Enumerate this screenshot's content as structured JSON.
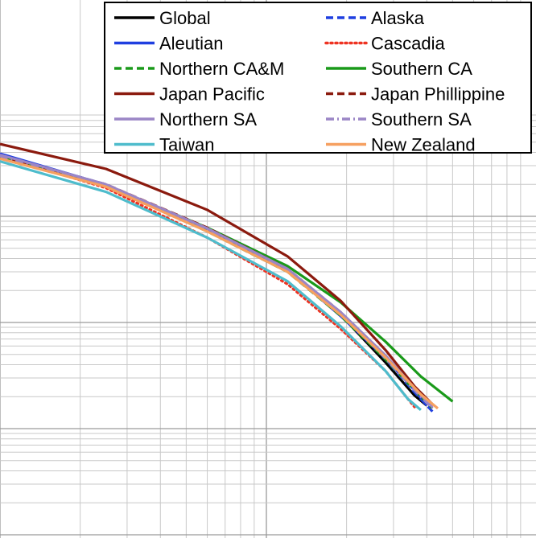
{
  "chart_data": {
    "type": "line",
    "title": "",
    "xlabel": "",
    "ylabel": "",
    "x_scale": "log",
    "y_scale": "log",
    "grid": true,
    "legend_placement": "top-right",
    "series": [
      {
        "name": "Global",
        "color": "#000000",
        "dash": "solid",
        "points": [
          [
            1.0,
            0.37
          ],
          [
            2.5,
            0.195
          ],
          [
            6.0,
            0.074
          ],
          [
            12.0,
            0.0305
          ],
          [
            19.0,
            0.0118
          ],
          [
            28.0,
            0.0042
          ],
          [
            36.0,
            0.00205
          ],
          [
            40.0,
            0.00165
          ]
        ]
      },
      {
        "name": "Alaska",
        "color": "#1f3fe0",
        "dash": "dashed",
        "points": [
          [
            1.0,
            0.38
          ],
          [
            2.5,
            0.2
          ],
          [
            6.0,
            0.074
          ],
          [
            12.0,
            0.031
          ],
          [
            19.0,
            0.0117
          ],
          [
            28.0,
            0.0045
          ],
          [
            36.0,
            0.0022
          ],
          [
            42.0,
            0.00145
          ]
        ]
      },
      {
        "name": "Aleutian",
        "color": "#1f3fe0",
        "dash": "solid",
        "points": [
          [
            1.0,
            0.39
          ],
          [
            2.5,
            0.198
          ],
          [
            6.0,
            0.074
          ],
          [
            12.0,
            0.031
          ],
          [
            19.0,
            0.0115
          ],
          [
            28.0,
            0.0046
          ],
          [
            36.0,
            0.0023
          ],
          [
            40.0,
            0.00165
          ]
        ]
      },
      {
        "name": "Cascadia",
        "color": "#ee3322",
        "dash": "dotted",
        "points": [
          [
            1.0,
            0.37
          ],
          [
            2.5,
            0.185
          ],
          [
            6.0,
            0.063
          ],
          [
            12.0,
            0.023
          ],
          [
            19.0,
            0.0087
          ],
          [
            28.0,
            0.0035
          ],
          [
            34.0,
            0.0019
          ],
          [
            36.0,
            0.0016
          ]
        ]
      },
      {
        "name": "Northern CA&M",
        "color": "#1a9a1a",
        "dash": "dashed",
        "points": [
          [
            1.0,
            0.37
          ],
          [
            2.5,
            0.195
          ],
          [
            6.0,
            0.072
          ],
          [
            12.0,
            0.03
          ],
          [
            19.0,
            0.0116
          ],
          [
            28.0,
            0.0045
          ],
          [
            36.0,
            0.0023
          ],
          [
            42.0,
            0.00155
          ]
        ]
      },
      {
        "name": "Southern CA",
        "color": "#1a9a1a",
        "dash": "solid",
        "points": [
          [
            1.0,
            0.36
          ],
          [
            2.5,
            0.196
          ],
          [
            6.0,
            0.078
          ],
          [
            12.0,
            0.034
          ],
          [
            19.0,
            0.0155
          ],
          [
            28.0,
            0.0066
          ],
          [
            38.0,
            0.0031
          ],
          [
            50.0,
            0.0018
          ]
        ]
      },
      {
        "name": "Japan Pacific",
        "color": "#8b1a0e",
        "dash": "solid",
        "points": [
          [
            1.0,
            0.48
          ],
          [
            2.5,
            0.28
          ],
          [
            6.0,
            0.115
          ],
          [
            12.0,
            0.042
          ],
          [
            19.0,
            0.016
          ],
          [
            28.0,
            0.0055
          ],
          [
            36.0,
            0.0025
          ],
          [
            42.0,
            0.0017
          ]
        ]
      },
      {
        "name": "Japan Phillippine",
        "color": "#8b1a0e",
        "dash": "dashed",
        "points": [
          [
            1.0,
            0.37
          ],
          [
            2.5,
            0.2
          ],
          [
            6.0,
            0.078
          ],
          [
            12.0,
            0.032
          ],
          [
            19.0,
            0.0125
          ],
          [
            28.0,
            0.0048
          ],
          [
            36.0,
            0.0024
          ],
          [
            42.0,
            0.0016
          ]
        ]
      },
      {
        "name": "Northern SA",
        "color": "#9b86c6",
        "dash": "solid",
        "points": [
          [
            1.0,
            0.38
          ],
          [
            2.5,
            0.2
          ],
          [
            6.0,
            0.077
          ],
          [
            12.0,
            0.032
          ],
          [
            19.0,
            0.0125
          ],
          [
            28.0,
            0.0049
          ],
          [
            36.0,
            0.0024
          ],
          [
            42.0,
            0.0016
          ]
        ]
      },
      {
        "name": "Southern SA",
        "color": "#9b86c6",
        "dash": "dashdot",
        "points": [
          [
            1.0,
            0.37
          ],
          [
            2.5,
            0.2
          ],
          [
            6.0,
            0.076
          ],
          [
            12.0,
            0.031
          ],
          [
            19.0,
            0.0122
          ],
          [
            28.0,
            0.0046
          ],
          [
            36.0,
            0.0023
          ],
          [
            42.0,
            0.00155
          ]
        ]
      },
      {
        "name": "Taiwan",
        "color": "#4ebccc",
        "dash": "solid",
        "points": [
          [
            1.0,
            0.33
          ],
          [
            2.5,
            0.17
          ],
          [
            6.0,
            0.063
          ],
          [
            12.0,
            0.0245
          ],
          [
            19.0,
            0.0092
          ],
          [
            28.0,
            0.0035
          ],
          [
            34.0,
            0.0019
          ],
          [
            38.0,
            0.0015
          ]
        ]
      },
      {
        "name": "New Zealand",
        "color": "#f6a060",
        "dash": "solid",
        "points": [
          [
            1.0,
            0.35
          ],
          [
            2.5,
            0.19
          ],
          [
            6.0,
            0.072
          ],
          [
            12.0,
            0.03
          ],
          [
            19.0,
            0.0118
          ],
          [
            28.0,
            0.0047
          ],
          [
            38.0,
            0.0021
          ],
          [
            44.0,
            0.00155
          ]
        ]
      }
    ]
  }
}
